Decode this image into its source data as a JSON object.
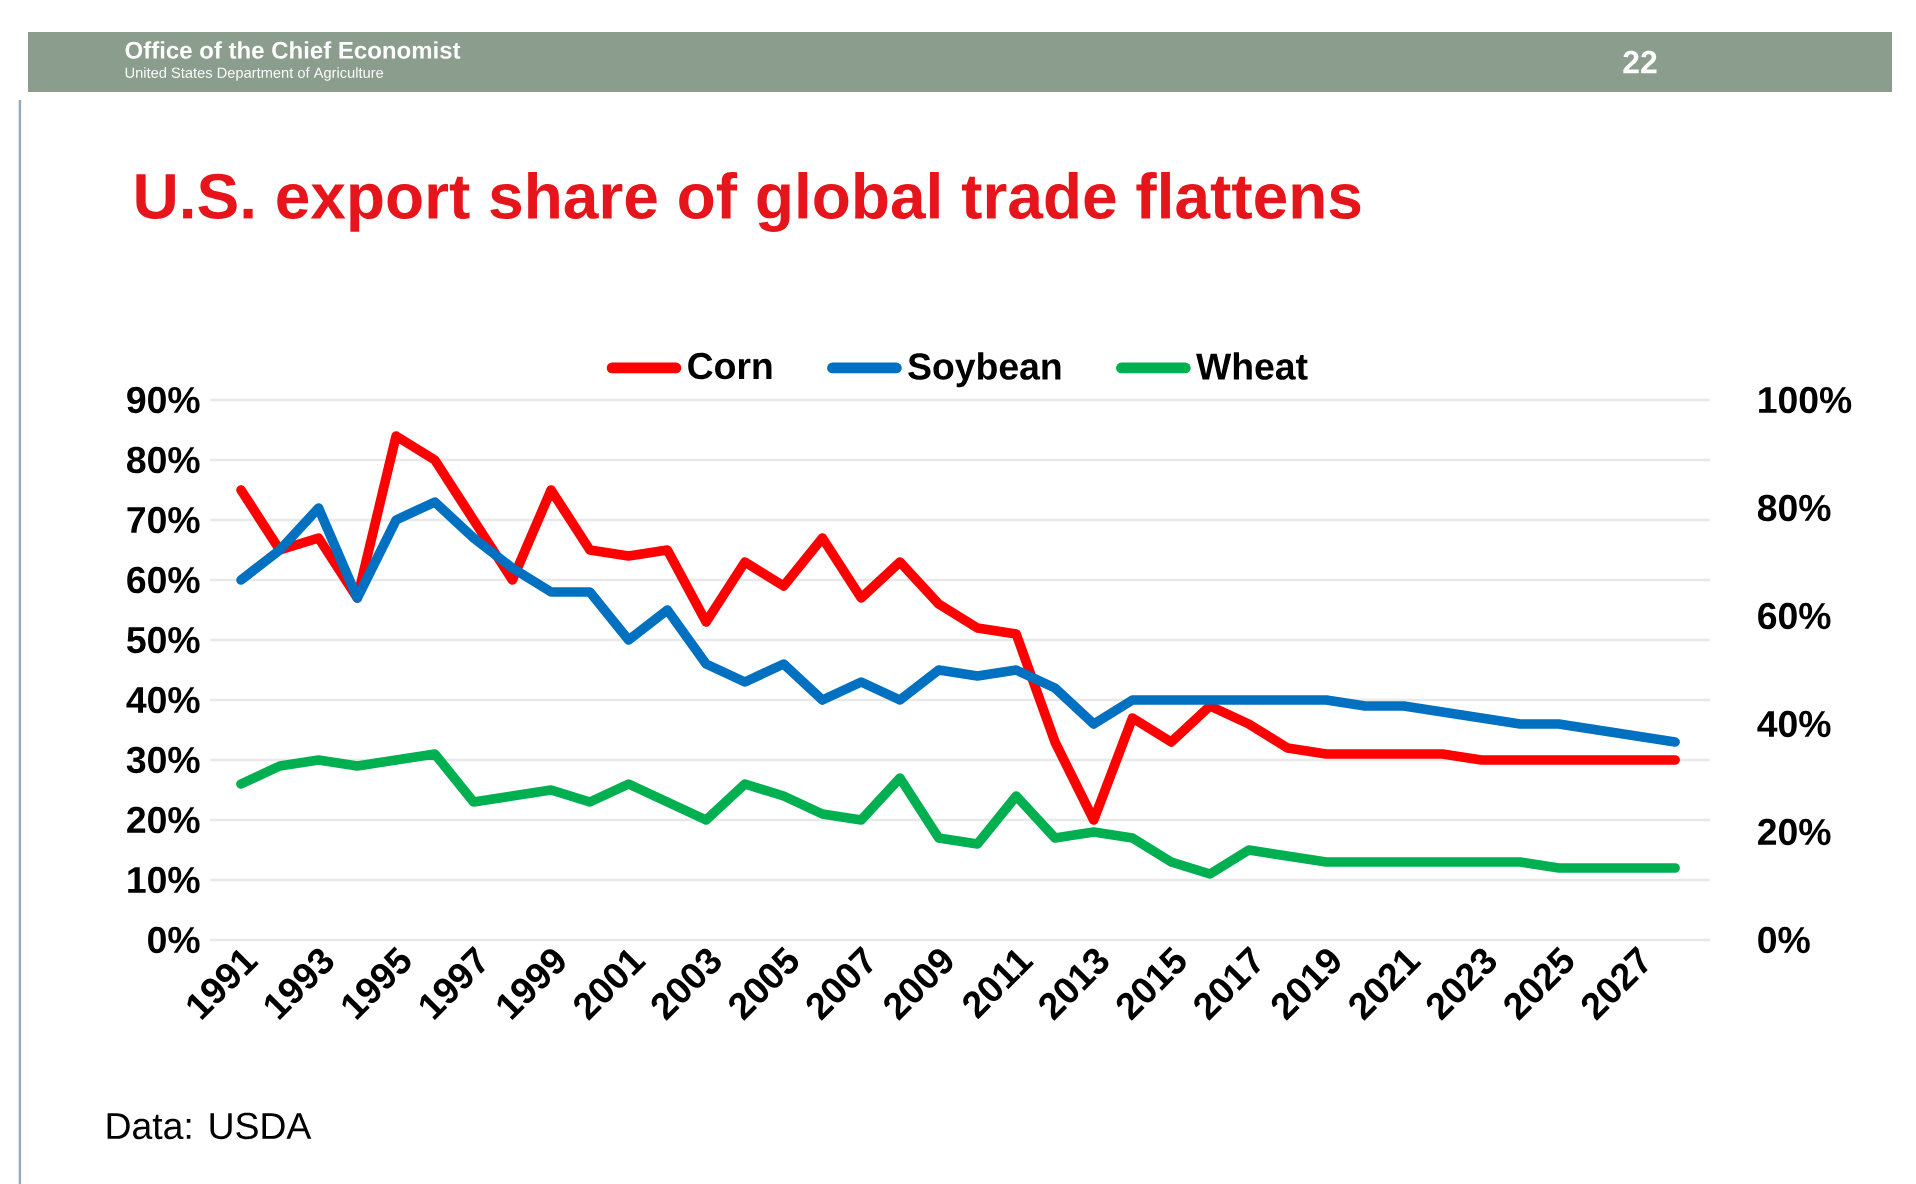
{
  "chart_data": {
    "type": "line",
    "title": "U.S. export share of global trade flattens",
    "categories": [
      "1991",
      null,
      "1993",
      null,
      "1995",
      null,
      "1997",
      null,
      "1999",
      null,
      "2001",
      null,
      "2003",
      null,
      "2005",
      null,
      "2007",
      null,
      "2009",
      null,
      "2011",
      null,
      "2013",
      null,
      "2015",
      null,
      "2017",
      null,
      "2019",
      null,
      "2021",
      null,
      "2023",
      null,
      "2025",
      null,
      "2027",
      null
    ],
    "series": [
      {
        "name": "Corn",
        "color": "#ff0000",
        "values": [
          75,
          65,
          67,
          57,
          84,
          80,
          70,
          60,
          75,
          65,
          64,
          65,
          53,
          63,
          59,
          67,
          57,
          63,
          56,
          52,
          51,
          33,
          20,
          37,
          33,
          39,
          36,
          32,
          31,
          31,
          31,
          31,
          30,
          30,
          30,
          30,
          30,
          30
        ]
      },
      {
        "name": "Soybean",
        "color": "#0070c0",
        "values": [
          60,
          65,
          72,
          57,
          70,
          73,
          67,
          62,
          58,
          58,
          50,
          55,
          46,
          43,
          46,
          40,
          43,
          40,
          45,
          44,
          45,
          42,
          36,
          40,
          40,
          40,
          40,
          40,
          40,
          39,
          39,
          38,
          37,
          36,
          36,
          35,
          34,
          33
        ]
      },
      {
        "name": "Wheat",
        "color": "#00b050",
        "values": [
          26,
          29,
          30,
          29,
          30,
          31,
          23,
          24,
          25,
          23,
          26,
          23,
          20,
          26,
          24,
          21,
          20,
          27,
          17,
          16,
          24,
          17,
          18,
          17,
          13,
          11,
          15,
          14,
          13,
          13,
          13,
          13,
          13,
          13,
          12,
          12,
          12,
          12
        ]
      }
    ],
    "ylim": [
      0,
      90
    ],
    "yticks": [
      {
        "value": 0,
        "label": "0%"
      },
      {
        "value": 10,
        "label": "10%"
      },
      {
        "value": 20,
        "label": "20%"
      },
      {
        "value": 30,
        "label": "30%"
      },
      {
        "value": 40,
        "label": "40%"
      },
      {
        "value": 50,
        "label": "50%"
      },
      {
        "value": 60,
        "label": "60%"
      },
      {
        "value": 70,
        "label": "70%"
      },
      {
        "value": 80,
        "label": "80%"
      },
      {
        "value": 90,
        "label": "90%"
      }
    ],
    "y2lim": [
      0,
      100
    ],
    "y2ticks": [
      {
        "value": 0,
        "label": "0%"
      },
      {
        "value": 20,
        "label": "20%"
      },
      {
        "value": 40,
        "label": "40%"
      },
      {
        "value": 60,
        "label": "60%"
      },
      {
        "value": 80,
        "label": "80%"
      },
      {
        "value": 100,
        "label": "100%"
      }
    ],
    "grid": "y",
    "legend": "top",
    "line_style": "solid",
    "marker": "none",
    "annotations": [
      "Office of the Chief Economist",
      "United States Department of Agriculture",
      "22",
      "Data: USDA"
    ]
  }
}
